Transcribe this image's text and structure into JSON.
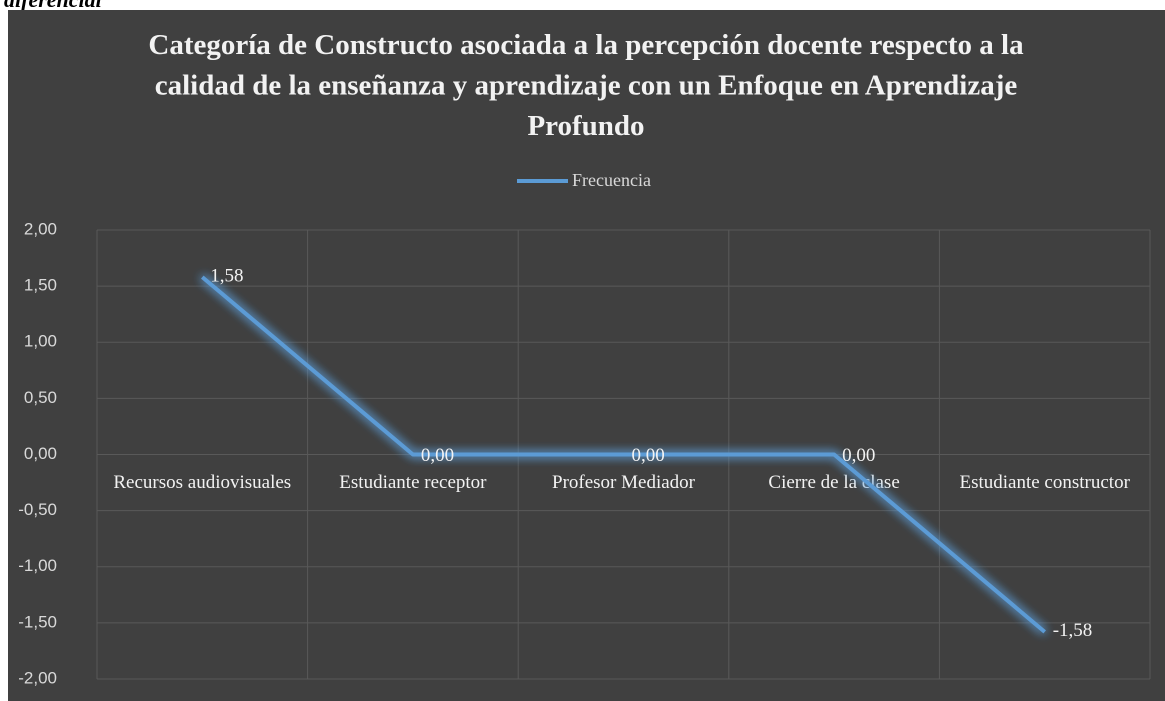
{
  "caption": "diferencial",
  "chart_data": {
    "type": "line",
    "title": "Categoría de Constructo asociada a la percepción docente respecto a la calidad de la enseñanza y aprendizaje con un Enfoque en Aprendizaje Profundo",
    "categories": [
      "Recursos audiovisuales",
      "Estudiante receptor",
      "Profesor Mediador",
      "Cierre de la clase",
      "Estudiante constructor"
    ],
    "series": [
      {
        "name": "Frecuencia",
        "color": "#5b9bd5",
        "values": [
          1.58,
          0,
          0,
          0,
          -1.58
        ],
        "value_labels": [
          "1,58",
          "0,00",
          "0,00",
          "0,00",
          "-1,58"
        ]
      }
    ],
    "ylim": [
      -2,
      2
    ],
    "yticks": [
      {
        "value": 2,
        "label": "2,00"
      },
      {
        "value": 1.5,
        "label": "1,50"
      },
      {
        "value": 1,
        "label": "1,00"
      },
      {
        "value": 0.5,
        "label": "0,50"
      },
      {
        "value": 0,
        "label": "0,00"
      },
      {
        "value": -0.5,
        "label": "-0,50"
      },
      {
        "value": -1,
        "label": "-1,00"
      },
      {
        "value": -1.5,
        "label": "-1,50"
      },
      {
        "value": -2,
        "label": "-2,00"
      }
    ],
    "grid": true,
    "legend": "top",
    "background": "#404040"
  }
}
